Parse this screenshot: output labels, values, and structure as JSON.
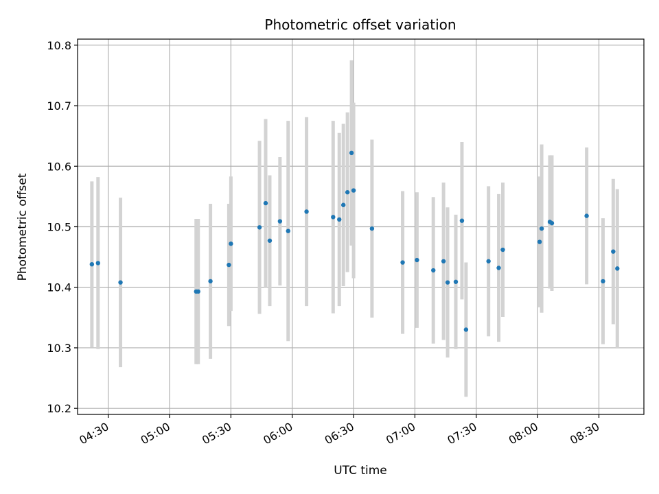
{
  "chart_data": {
    "type": "scatter",
    "title": "Photometric offset variation",
    "xlabel": "UTC time",
    "ylabel": "Photometric offset",
    "x_unit": "UTC time (HH:MM)",
    "xlim": [
      "04:15",
      "08:52"
    ],
    "ylim": [
      10.19,
      10.81
    ],
    "y_ticks": [
      "10.2",
      "10.3",
      "10.4",
      "10.5",
      "10.6",
      "10.7",
      "10.8"
    ],
    "x_ticks": [
      "04:30",
      "05:00",
      "05:30",
      "06:00",
      "06:30",
      "07:00",
      "07:30",
      "08:00",
      "08:30"
    ],
    "grid": true,
    "marker_color": "#1f77b4",
    "errorbar_color": "#d3d3d3",
    "points": [
      {
        "x": "04:22",
        "y": 10.438,
        "err": 0.137
      },
      {
        "x": "04:25",
        "y": 10.44,
        "err": 0.142
      },
      {
        "x": "04:36",
        "y": 10.408,
        "err": 0.14
      },
      {
        "x": "05:13",
        "y": 10.393,
        "err": 0.12
      },
      {
        "x": "05:14",
        "y": 10.393,
        "err": 0.12
      },
      {
        "x": "05:20",
        "y": 10.41,
        "err": 0.128
      },
      {
        "x": "05:29",
        "y": 10.437,
        "err": 0.101
      },
      {
        "x": "05:30",
        "y": 10.472,
        "err": 0.111
      },
      {
        "x": "05:44",
        "y": 10.499,
        "err": 0.143
      },
      {
        "x": "05:47",
        "y": 10.539,
        "err": 0.139
      },
      {
        "x": "05:49",
        "y": 10.477,
        "err": 0.108
      },
      {
        "x": "05:54",
        "y": 10.509,
        "err": 0.106
      },
      {
        "x": "05:58",
        "y": 10.493,
        "err": 0.182
      },
      {
        "x": "06:07",
        "y": 10.525,
        "err": 0.156
      },
      {
        "x": "06:20",
        "y": 10.516,
        "err": 0.159
      },
      {
        "x": "06:23",
        "y": 10.512,
        "err": 0.143
      },
      {
        "x": "06:25",
        "y": 10.536,
        "err": 0.134
      },
      {
        "x": "06:27",
        "y": 10.557,
        "err": 0.132
      },
      {
        "x": "06:29",
        "y": 10.622,
        "err": 0.153
      },
      {
        "x": "06:30",
        "y": 10.56,
        "err": 0.145
      },
      {
        "x": "06:39",
        "y": 10.497,
        "err": 0.147
      },
      {
        "x": "06:54",
        "y": 10.441,
        "err": 0.118
      },
      {
        "x": "07:01",
        "y": 10.445,
        "err": 0.112
      },
      {
        "x": "07:09",
        "y": 10.428,
        "err": 0.121
      },
      {
        "x": "07:14",
        "y": 10.443,
        "err": 0.13
      },
      {
        "x": "07:16",
        "y": 10.408,
        "err": 0.124
      },
      {
        "x": "07:20",
        "y": 10.409,
        "err": 0.111
      },
      {
        "x": "07:23",
        "y": 10.51,
        "err": 0.13
      },
      {
        "x": "07:25",
        "y": 10.33,
        "err": 0.111
      },
      {
        "x": "07:36",
        "y": 10.443,
        "err": 0.124
      },
      {
        "x": "07:41",
        "y": 10.432,
        "err": 0.122
      },
      {
        "x": "07:43",
        "y": 10.462,
        "err": 0.111
      },
      {
        "x": "08:01",
        "y": 10.475,
        "err": 0.108
      },
      {
        "x": "08:02",
        "y": 10.497,
        "err": 0.139
      },
      {
        "x": "08:06",
        "y": 10.508,
        "err": 0.11
      },
      {
        "x": "08:07",
        "y": 10.506,
        "err": 0.112
      },
      {
        "x": "08:24",
        "y": 10.518,
        "err": 0.113
      },
      {
        "x": "08:32",
        "y": 10.41,
        "err": 0.104
      },
      {
        "x": "08:37",
        "y": 10.459,
        "err": 0.12
      },
      {
        "x": "08:39",
        "y": 10.431,
        "err": 0.131
      }
    ]
  }
}
